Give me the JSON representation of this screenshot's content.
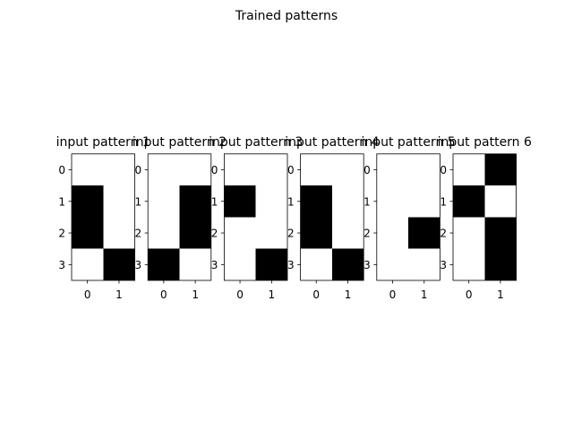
{
  "figure": {
    "title": "Trained patterns"
  },
  "colors": {
    "on": "#000000",
    "off": "#ffffff",
    "frame": "#000000"
  },
  "chart_data": {
    "type": "heatmap",
    "xticks": [
      "0",
      "1"
    ],
    "yticks": [
      "0",
      "1",
      "2",
      "3"
    ],
    "panels": [
      {
        "title": "input pattern 1",
        "grid": [
          [
            0,
            0
          ],
          [
            1,
            0
          ],
          [
            1,
            0
          ],
          [
            0,
            1
          ]
        ]
      },
      {
        "title": "input pattern 2",
        "grid": [
          [
            0,
            0
          ],
          [
            0,
            1
          ],
          [
            0,
            1
          ],
          [
            1,
            0
          ]
        ]
      },
      {
        "title": "input pattern 3",
        "grid": [
          [
            0,
            0
          ],
          [
            1,
            0
          ],
          [
            0,
            0
          ],
          [
            0,
            1
          ]
        ]
      },
      {
        "title": "input pattern 4",
        "grid": [
          [
            0,
            0
          ],
          [
            1,
            0
          ],
          [
            1,
            0
          ],
          [
            0,
            1
          ]
        ]
      },
      {
        "title": "input pattern 5",
        "grid": [
          [
            0,
            0
          ],
          [
            0,
            0
          ],
          [
            0,
            1
          ],
          [
            0,
            0
          ]
        ]
      },
      {
        "title": "input pattern 6",
        "grid": [
          [
            0,
            1
          ],
          [
            1,
            0
          ],
          [
            0,
            1
          ],
          [
            0,
            1
          ]
        ]
      }
    ]
  }
}
